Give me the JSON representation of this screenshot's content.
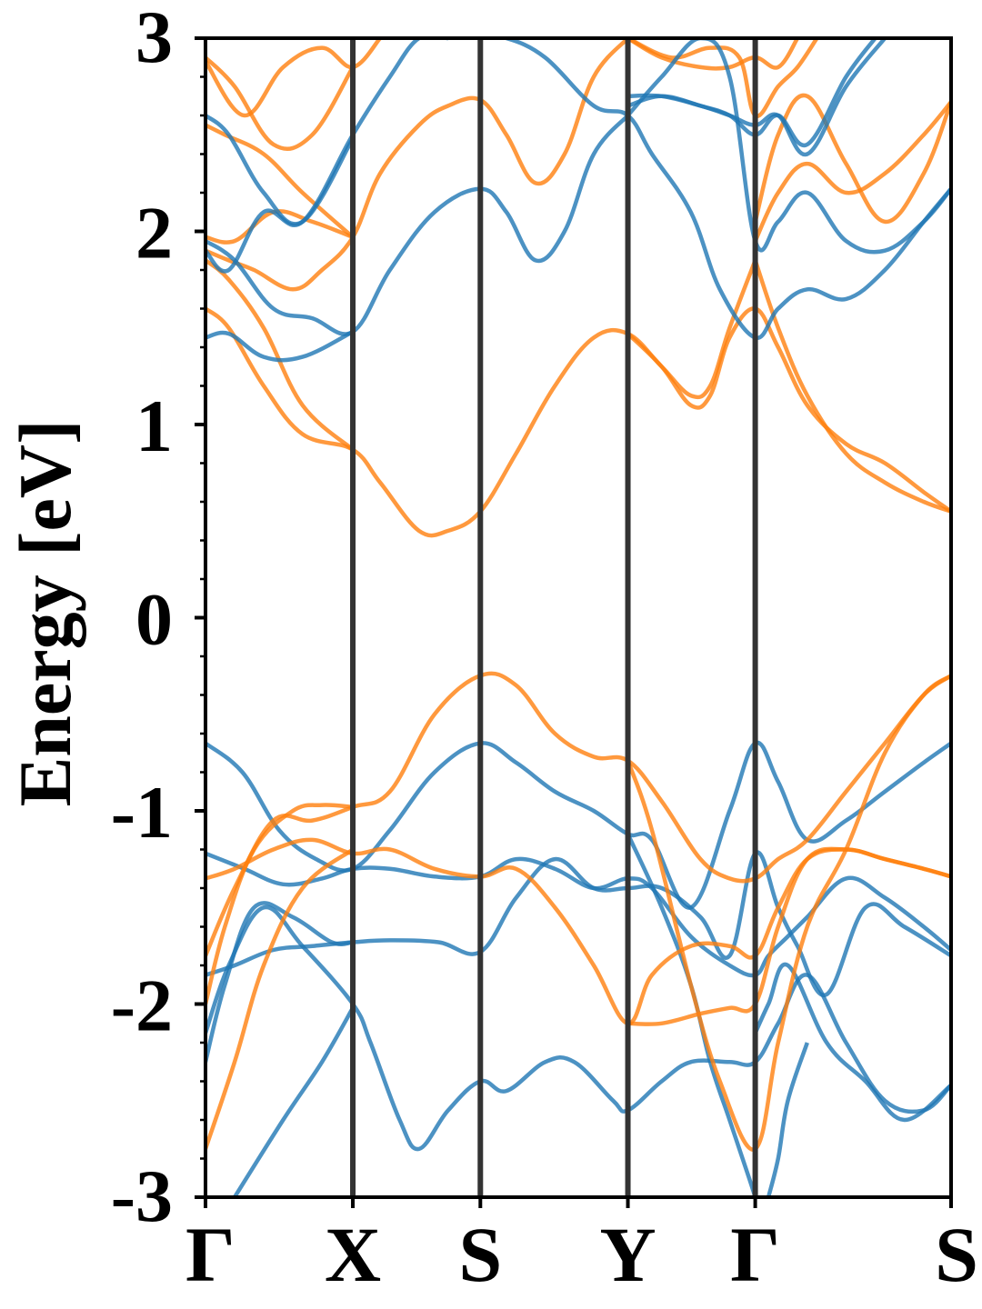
{
  "chart_data": {
    "type": "line",
    "title": "",
    "xlabel": "",
    "ylabel": "Energy [eV]",
    "ylim": [
      -3,
      3
    ],
    "y_ticks": [
      "3",
      "2",
      "1",
      "0",
      "-1",
      "-2",
      "-3"
    ],
    "y_tick_values": [
      3,
      2,
      1,
      0,
      -1,
      -2,
      -3
    ],
    "minor_y_step": 0.2,
    "x_ticks": [
      "Γ",
      "X",
      "S",
      "Y",
      "Γ",
      "S"
    ],
    "x_tick_positions": [
      0,
      0.759,
      1.416,
      2.176,
      2.832,
      3.841
    ],
    "xlim": [
      0,
      3.841
    ],
    "vertical_lines_at": [
      0.759,
      1.416,
      2.176,
      2.832
    ],
    "grid": false,
    "legend": "none",
    "colors": {
      "blue": "#1f77b4",
      "orange": "#ff7f0e",
      "path_lines": "#333333"
    },
    "series": [
      {
        "color": "blue",
        "x": [
          0,
          0.19,
          0.38,
          0.57,
          0.759,
          0.95,
          1.18,
          1.416,
          1.6,
          1.8,
          2.0,
          2.176,
          2.3,
          2.5,
          2.7,
          2.832,
          2.95,
          3.1,
          3.3,
          3.5,
          3.7,
          3.841
        ],
        "values": [
          -0.65,
          -0.8,
          -1.1,
          -1.25,
          -1.3,
          -1.1,
          -0.8,
          -0.65,
          -0.75,
          -0.9,
          -1.0,
          -1.12,
          -1.15,
          -1.5,
          -1.0,
          -0.65,
          -0.85,
          -1.15,
          -1.05,
          -0.9,
          -0.75,
          -0.65
        ]
      },
      {
        "color": "blue",
        "x": [
          0,
          0.2,
          0.4,
          0.6,
          0.759,
          0.95,
          1.18,
          1.416,
          1.6,
          1.8,
          2.0,
          2.176,
          2.3,
          2.5,
          2.7,
          2.832,
          2.9,
          3.0,
          3.1,
          3.3,
          3.5,
          3.7,
          3.841
        ],
        "values": [
          -1.22,
          -1.3,
          -1.38,
          -1.35,
          -1.3,
          -1.3,
          -1.34,
          -1.34,
          -1.25,
          -1.3,
          -1.4,
          -1.35,
          -1.4,
          -1.65,
          -1.8,
          -1.85,
          -1.75,
          -1.65,
          -1.55,
          -1.35,
          -1.45,
          -1.6,
          -1.72
        ]
      },
      {
        "color": "blue",
        "x": [
          0,
          0.15,
          0.35,
          0.55,
          0.759,
          0.95,
          1.2,
          1.416,
          1.6,
          1.8,
          2.0,
          2.176,
          2.35,
          2.55,
          2.7,
          2.832,
          2.95,
          3.05,
          3.2,
          3.4,
          3.6,
          3.841
        ],
        "values": [
          -1.85,
          -1.8,
          -1.72,
          -1.7,
          -1.68,
          -1.67,
          -1.68,
          -1.73,
          -1.45,
          -1.25,
          -1.4,
          -1.4,
          -1.4,
          -1.55,
          -1.75,
          -1.22,
          -1.5,
          -1.7,
          -1.95,
          -1.5,
          -1.6,
          -1.75
        ]
      },
      {
        "color": "blue",
        "x": [
          0,
          0.12,
          0.3,
          0.5,
          0.759,
          0.85,
          1.0,
          1.1,
          1.25,
          1.416,
          1.55,
          1.75,
          1.9,
          2.1,
          2.176,
          2.35,
          2.5,
          2.7,
          2.832,
          2.95,
          3.1,
          3.3,
          3.5,
          3.7,
          3.841
        ],
        "values": [
          -2.15,
          -1.8,
          -1.5,
          -1.7,
          -2.0,
          -2.2,
          -2.6,
          -2.75,
          -2.55,
          -2.4,
          -2.45,
          -2.3,
          -2.3,
          -2.5,
          -2.55,
          -2.4,
          -2.3,
          -2.3,
          -2.3,
          -2.1,
          -1.85,
          -2.2,
          -2.5,
          -2.55,
          -2.42
        ]
      },
      {
        "color": "blue",
        "x": [
          0,
          0.1,
          0.25,
          0.45,
          0.65,
          0.759
        ],
        "values": [
          -2.3,
          -1.9,
          -1.5,
          -1.55,
          -1.68,
          -1.68
        ]
      },
      {
        "color": "blue",
        "x": [
          0.15,
          0.4,
          0.6,
          0.759
        ],
        "values": [
          -3.0,
          -2.6,
          -2.3,
          -2.02
        ]
      },
      {
        "color": "blue",
        "x": [
          2.176,
          2.35,
          2.5,
          2.6,
          2.7,
          2.8,
          2.832
        ],
        "values": [
          -1.12,
          -1.5,
          -1.9,
          -2.3,
          -2.6,
          -2.9,
          -3.0
        ]
      },
      {
        "color": "blue",
        "x": [
          2.832,
          2.9,
          3.0,
          3.2,
          3.4,
          3.6,
          3.841
        ],
        "values": [
          -2.15,
          -2.0,
          -1.8,
          -2.2,
          -2.4,
          -2.6,
          -2.42
        ]
      },
      {
        "color": "blue",
        "x": [
          2.9,
          2.95,
          3.0,
          3.1
        ],
        "values": [
          -3.0,
          -2.8,
          -2.5,
          -2.2
        ]
      },
      {
        "color": "orange",
        "x": [
          0,
          0.15,
          0.35,
          0.55,
          0.759,
          0.95,
          1.18,
          1.416,
          1.6,
          1.8,
          2.0,
          2.176,
          2.3,
          2.5,
          2.7,
          2.832,
          2.95,
          3.1,
          3.3,
          3.5,
          3.7,
          3.841
        ],
        "values": [
          -1.35,
          -1.3,
          -1.2,
          -1.15,
          -1.22,
          -1.2,
          -1.3,
          -1.34,
          -1.3,
          -1.5,
          -1.8,
          -2.1,
          -1.85,
          -1.7,
          -1.7,
          -1.75,
          -1.5,
          -1.25,
          -1.2,
          -1.25,
          -1.3,
          -1.34
        ]
      },
      {
        "color": "orange",
        "x": [
          0,
          0.15,
          0.35,
          0.55,
          0.759,
          0.95,
          1.18,
          1.416,
          1.6,
          1.8,
          2.0,
          2.176,
          2.35,
          2.55,
          2.7,
          2.832,
          2.95,
          3.1,
          3.3,
          3.5,
          3.7,
          3.841
        ],
        "values": [
          -1.75,
          -1.4,
          -1.05,
          -1.05,
          -0.98,
          -0.9,
          -0.5,
          -0.3,
          -0.35,
          -0.6,
          -0.72,
          -0.74,
          -0.95,
          -1.25,
          -1.35,
          -1.35,
          -1.25,
          -1.15,
          -0.9,
          -0.65,
          -0.4,
          -0.3
        ]
      },
      {
        "color": "orange",
        "x": [
          0,
          0.1,
          0.25,
          0.45,
          0.6,
          0.759
        ],
        "values": [
          -2.0,
          -1.6,
          -1.2,
          -1.0,
          -0.97,
          -0.98
        ]
      },
      {
        "color": "orange",
        "x": [
          0,
          0.15,
          0.3,
          0.5,
          0.759
        ],
        "values": [
          -2.75,
          -2.3,
          -1.8,
          -1.4,
          -1.2
        ]
      },
      {
        "color": "orange",
        "x": [
          2.176,
          2.3,
          2.5,
          2.65,
          2.832,
          2.95,
          3.1,
          3.3,
          3.5,
          3.7,
          3.841
        ],
        "values": [
          -0.74,
          -1.1,
          -1.9,
          -2.4,
          -2.75,
          -2.2,
          -1.6,
          -1.2,
          -0.7,
          -0.4,
          -0.3
        ]
      },
      {
        "color": "orange",
        "x": [
          2.176,
          2.35,
          2.55,
          2.7,
          2.832,
          2.95,
          3.1,
          3.3,
          3.5,
          3.7,
          3.841
        ],
        "values": [
          -2.1,
          -2.1,
          -2.05,
          -2.02,
          -2.0,
          -1.6,
          -1.25,
          -1.2,
          -1.25,
          -1.3,
          -1.34
        ]
      },
      {
        "color": "orange",
        "x": [
          0,
          0.12,
          0.3,
          0.5,
          0.759,
          0.9,
          1.1,
          1.25,
          1.416,
          1.6,
          1.8,
          2.0,
          2.176,
          2.35,
          2.5,
          2.6,
          2.7,
          2.832
        ],
        "values": [
          1.6,
          1.5,
          1.2,
          0.95,
          0.87,
          0.7,
          0.45,
          0.45,
          0.55,
          0.85,
          1.2,
          1.45,
          1.47,
          1.3,
          1.15,
          1.2,
          1.5,
          1.85
        ]
      },
      {
        "color": "orange",
        "x": [
          0,
          0.12,
          0.3,
          0.5,
          0.759
        ],
        "values": [
          1.85,
          1.75,
          1.5,
          1.1,
          0.87
        ]
      },
      {
        "color": "orange",
        "x": [
          2.176,
          2.35,
          2.5,
          2.6,
          2.7,
          2.832,
          2.95,
          3.1,
          3.3,
          3.5,
          3.7,
          3.841
        ],
        "values": [
          1.47,
          1.3,
          1.1,
          1.15,
          1.45,
          1.6,
          1.4,
          1.1,
          0.9,
          0.8,
          0.65,
          0.55
        ]
      },
      {
        "color": "orange",
        "x": [
          2.832,
          2.95,
          3.1,
          3.3,
          3.5,
          3.7,
          3.841
        ],
        "values": [
          1.85,
          1.5,
          1.15,
          0.85,
          0.7,
          0.6,
          0.55
        ]
      },
      {
        "color": "orange",
        "x": [
          0,
          0.12,
          0.25,
          0.45,
          0.6,
          0.759,
          0.9,
          1.1,
          1.25,
          1.416,
          1.55,
          1.7,
          1.85,
          2.0,
          2.176
        ],
        "values": [
          1.9,
          1.85,
          1.8,
          1.7,
          1.8,
          1.97,
          2.3,
          2.55,
          2.65,
          2.68,
          2.5,
          2.25,
          2.4,
          2.8,
          3.0
        ]
      },
      {
        "color": "orange",
        "x": [
          0,
          0.15,
          0.35,
          0.55,
          0.759
        ],
        "values": [
          1.97,
          1.95,
          2.1,
          2.05,
          1.97
        ]
      },
      {
        "color": "orange",
        "x": [
          2.832,
          2.95,
          3.1,
          3.3,
          3.5,
          3.7,
          3.841
        ],
        "values": [
          1.95,
          2.2,
          2.35,
          2.2,
          2.3,
          2.5,
          2.67
        ]
      },
      {
        "color": "orange",
        "x": [
          2.832,
          2.95,
          3.1,
          3.3,
          3.5,
          3.7,
          3.841
        ],
        "values": [
          2.05,
          2.5,
          2.7,
          2.35,
          2.05,
          2.3,
          2.67
        ]
      },
      {
        "color": "orange",
        "x": [
          0,
          0.1,
          0.3,
          0.5,
          0.759
        ],
        "values": [
          2.55,
          2.5,
          2.4,
          2.2,
          1.97
        ]
      },
      {
        "color": "orange",
        "x": [
          0,
          0.15,
          0.35,
          0.55,
          0.759
        ],
        "values": [
          2.9,
          2.75,
          2.45,
          2.5,
          2.85
        ]
      },
      {
        "color": "orange",
        "x": [
          0,
          0.2,
          0.4,
          0.6,
          0.759,
          0.9
        ],
        "values": [
          2.88,
          2.6,
          2.85,
          2.95,
          2.85,
          3.0
        ]
      },
      {
        "color": "orange",
        "x": [
          2.176,
          2.35,
          2.55,
          2.7,
          2.832,
          2.95,
          3.05
        ],
        "values": [
          3.0,
          2.9,
          2.85,
          2.85,
          2.9,
          2.85,
          3.0
        ]
      },
      {
        "color": "orange",
        "x": [
          2.176,
          2.4,
          2.6,
          2.75,
          2.832,
          2.95,
          3.05,
          3.15
        ],
        "values": [
          3.0,
          2.9,
          2.95,
          2.9,
          2.6,
          2.75,
          2.85,
          3.0
        ]
      },
      {
        "color": "blue",
        "x": [
          0,
          0.12,
          0.3,
          0.5,
          0.759
        ],
        "values": [
          1.45,
          1.47,
          1.35,
          1.35,
          1.48
        ]
      },
      {
        "color": "blue",
        "x": [
          0,
          0.15,
          0.35,
          0.55,
          0.759,
          0.95,
          1.18,
          1.416,
          1.55,
          1.7,
          1.85,
          2.0,
          2.176
        ],
        "values": [
          1.95,
          1.85,
          1.6,
          1.55,
          1.48,
          1.8,
          2.1,
          2.22,
          2.1,
          1.85,
          2.0,
          2.4,
          2.6
        ]
      },
      {
        "color": "blue",
        "x": [
          0,
          0.12,
          0.3,
          0.5,
          0.759,
          0.95,
          1.1,
          1.25
        ],
        "values": [
          1.9,
          1.8,
          2.1,
          2.05,
          2.5,
          2.8,
          3.0,
          3.0
        ]
      },
      {
        "color": "blue",
        "x": [
          0,
          0.12,
          0.3,
          0.5,
          0.759
        ],
        "values": [
          2.6,
          2.5,
          2.2,
          2.05,
          2.48
        ]
      },
      {
        "color": "blue",
        "x": [
          1.416,
          1.55,
          1.75,
          2.0,
          2.176,
          2.3,
          2.5,
          2.65,
          2.832,
          2.95,
          3.1,
          3.3,
          3.5,
          3.7,
          3.841
        ],
        "values": [
          3.0,
          3.0,
          2.9,
          2.65,
          2.6,
          2.4,
          2.1,
          1.7,
          1.45,
          1.6,
          1.7,
          1.65,
          1.8,
          2.05,
          2.22
        ]
      },
      {
        "color": "blue",
        "x": [
          2.176,
          2.35,
          2.55,
          2.7,
          2.832,
          2.95,
          3.1,
          3.3,
          3.5,
          3.7,
          3.841
        ],
        "values": [
          2.6,
          2.8,
          3.0,
          2.8,
          1.95,
          2.05,
          2.2,
          1.95,
          1.9,
          2.05,
          2.22
        ]
      },
      {
        "color": "blue",
        "x": [
          2.176,
          2.35,
          2.55,
          2.7,
          2.832,
          2.95,
          3.1,
          3.3,
          3.5
        ],
        "values": [
          2.65,
          2.7,
          2.65,
          2.6,
          2.55,
          2.6,
          2.4,
          2.75,
          3.0
        ]
      },
      {
        "color": "blue",
        "x": [
          2.176,
          2.35,
          2.55,
          2.7,
          2.832,
          2.95,
          3.1,
          3.3,
          3.45
        ],
        "values": [
          2.7,
          2.7,
          2.65,
          2.6,
          2.5,
          2.6,
          2.45,
          2.8,
          3.0
        ]
      }
    ]
  }
}
